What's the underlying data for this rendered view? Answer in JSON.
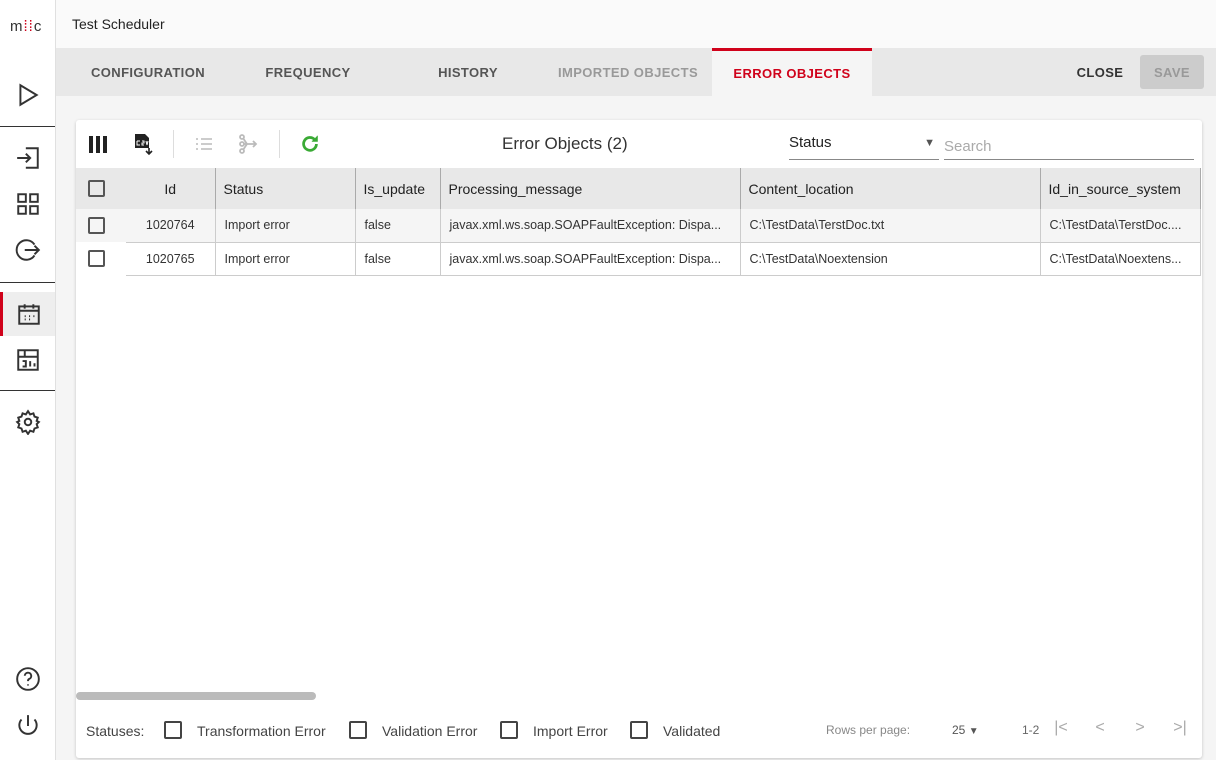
{
  "app": {
    "logo": "m::c",
    "title": "Test Scheduler"
  },
  "sidebar": {
    "items": [
      {
        "icon": "play-icon"
      },
      {
        "icon": "import-icon"
      },
      {
        "icon": "grid-icon"
      },
      {
        "icon": "export-icon"
      },
      {
        "icon": "calendar-icon",
        "active": true
      },
      {
        "icon": "report-icon"
      },
      {
        "icon": "gear-icon"
      },
      {
        "icon": "help-icon"
      },
      {
        "icon": "power-icon"
      }
    ]
  },
  "tabs": [
    {
      "label": "CONFIGURATION"
    },
    {
      "label": "FREQUENCY"
    },
    {
      "label": "HISTORY"
    },
    {
      "label": "IMPORTED OBJECTS",
      "disabled": true
    },
    {
      "label": "ERROR OBJECTS",
      "active": true
    }
  ],
  "actions": {
    "close": "CLOSE",
    "save": "SAVE"
  },
  "colors": {
    "accent": "#d0021b",
    "refresh": "#3aaa35"
  },
  "toolbar": {
    "title": "Error Objects (2)",
    "status_filter": "Status",
    "search_placeholder": "Search"
  },
  "table": {
    "columns": [
      "Id",
      "Status",
      "Is_update",
      "Processing_message",
      "Content_location",
      "Id_in_source_system"
    ],
    "rows": [
      [
        "1020764",
        "Import error",
        "false",
        "javax.xml.ws.soap.SOAPFaultException: Dispa...",
        "C:\\TestData\\TerstDoc.txt",
        "C:\\TestData\\TerstDoc...."
      ],
      [
        "1020765",
        "Import error",
        "false",
        "javax.xml.ws.soap.SOAPFaultException: Dispa...",
        "C:\\TestData\\Noextension",
        "C:\\TestData\\Noextens..."
      ]
    ]
  },
  "footer": {
    "statuses_label": "Statuses:",
    "statuses": [
      "Transformation Error",
      "Validation Error",
      "Import Error",
      "Validated"
    ],
    "rows_per_page_label": "Rows per page:",
    "rows_per_page": "25",
    "range": "1-2"
  }
}
